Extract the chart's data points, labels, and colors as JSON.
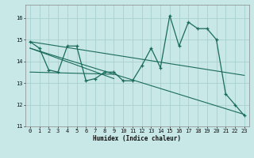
{
  "xlabel": "Humidex (Indice chaleur)",
  "bg_color": "#c8e8e8",
  "grid_color": "#a8d0d0",
  "line_color": "#1a6b5a",
  "xlim": [
    -0.5,
    23.5
  ],
  "ylim": [
    11,
    16.6
  ],
  "yticks": [
    11,
    12,
    13,
    14,
    15,
    16
  ],
  "xticks": [
    0,
    1,
    2,
    3,
    4,
    5,
    6,
    7,
    8,
    9,
    10,
    11,
    12,
    13,
    14,
    15,
    16,
    17,
    18,
    19,
    20,
    21,
    22,
    23
  ],
  "main_x": [
    0,
    1,
    2,
    3,
    4,
    5,
    6,
    7,
    8,
    9,
    10,
    11,
    12,
    13,
    14,
    15,
    16,
    17,
    18,
    19,
    20,
    21,
    22,
    23
  ],
  "main_y": [
    14.9,
    14.6,
    13.6,
    13.5,
    14.7,
    14.7,
    13.1,
    13.2,
    13.5,
    13.5,
    13.1,
    13.1,
    13.8,
    14.6,
    13.7,
    16.1,
    14.7,
    15.8,
    15.5,
    15.5,
    15.0,
    12.5,
    12.0,
    11.5
  ],
  "trend_lines": [
    {
      "x": [
        0,
        23
      ],
      "y": [
        14.9,
        13.35
      ]
    },
    {
      "x": [
        0,
        23
      ],
      "y": [
        14.6,
        11.55
      ]
    },
    {
      "x": [
        0,
        9
      ],
      "y": [
        14.6,
        13.2
      ]
    },
    {
      "x": [
        0,
        9
      ],
      "y": [
        13.5,
        13.4
      ]
    }
  ]
}
